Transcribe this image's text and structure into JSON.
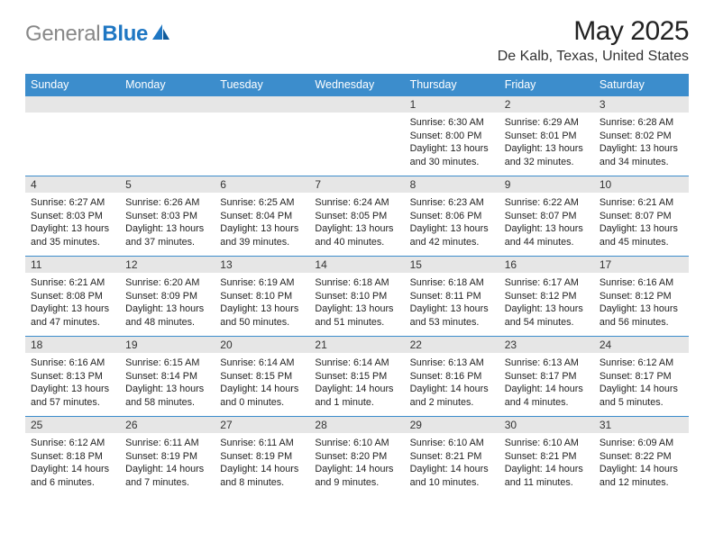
{
  "header": {
    "logo_general": "General",
    "logo_blue": "Blue",
    "month_title": "May 2025",
    "location": "De Kalb, Texas, United States"
  },
  "style": {
    "header_bg": "#3c8dcc",
    "border_color": "#3c8dcc",
    "num_bg": "#e6e6e6",
    "page_bg": "#ffffff",
    "day_font_size": 10.8,
    "header_font_size": 12.5
  },
  "day_names": [
    "Sunday",
    "Monday",
    "Tuesday",
    "Wednesday",
    "Thursday",
    "Friday",
    "Saturday"
  ],
  "weeks": [
    [
      {
        "num": "",
        "sunrise": "",
        "sunset": "",
        "daylight": ""
      },
      {
        "num": "",
        "sunrise": "",
        "sunset": "",
        "daylight": ""
      },
      {
        "num": "",
        "sunrise": "",
        "sunset": "",
        "daylight": ""
      },
      {
        "num": "",
        "sunrise": "",
        "sunset": "",
        "daylight": ""
      },
      {
        "num": "1",
        "sunrise": "Sunrise: 6:30 AM",
        "sunset": "Sunset: 8:00 PM",
        "daylight": "Daylight: 13 hours and 30 minutes."
      },
      {
        "num": "2",
        "sunrise": "Sunrise: 6:29 AM",
        "sunset": "Sunset: 8:01 PM",
        "daylight": "Daylight: 13 hours and 32 minutes."
      },
      {
        "num": "3",
        "sunrise": "Sunrise: 6:28 AM",
        "sunset": "Sunset: 8:02 PM",
        "daylight": "Daylight: 13 hours and 34 minutes."
      }
    ],
    [
      {
        "num": "4",
        "sunrise": "Sunrise: 6:27 AM",
        "sunset": "Sunset: 8:03 PM",
        "daylight": "Daylight: 13 hours and 35 minutes."
      },
      {
        "num": "5",
        "sunrise": "Sunrise: 6:26 AM",
        "sunset": "Sunset: 8:03 PM",
        "daylight": "Daylight: 13 hours and 37 minutes."
      },
      {
        "num": "6",
        "sunrise": "Sunrise: 6:25 AM",
        "sunset": "Sunset: 8:04 PM",
        "daylight": "Daylight: 13 hours and 39 minutes."
      },
      {
        "num": "7",
        "sunrise": "Sunrise: 6:24 AM",
        "sunset": "Sunset: 8:05 PM",
        "daylight": "Daylight: 13 hours and 40 minutes."
      },
      {
        "num": "8",
        "sunrise": "Sunrise: 6:23 AM",
        "sunset": "Sunset: 8:06 PM",
        "daylight": "Daylight: 13 hours and 42 minutes."
      },
      {
        "num": "9",
        "sunrise": "Sunrise: 6:22 AM",
        "sunset": "Sunset: 8:07 PM",
        "daylight": "Daylight: 13 hours and 44 minutes."
      },
      {
        "num": "10",
        "sunrise": "Sunrise: 6:21 AM",
        "sunset": "Sunset: 8:07 PM",
        "daylight": "Daylight: 13 hours and 45 minutes."
      }
    ],
    [
      {
        "num": "11",
        "sunrise": "Sunrise: 6:21 AM",
        "sunset": "Sunset: 8:08 PM",
        "daylight": "Daylight: 13 hours and 47 minutes."
      },
      {
        "num": "12",
        "sunrise": "Sunrise: 6:20 AM",
        "sunset": "Sunset: 8:09 PM",
        "daylight": "Daylight: 13 hours and 48 minutes."
      },
      {
        "num": "13",
        "sunrise": "Sunrise: 6:19 AM",
        "sunset": "Sunset: 8:10 PM",
        "daylight": "Daylight: 13 hours and 50 minutes."
      },
      {
        "num": "14",
        "sunrise": "Sunrise: 6:18 AM",
        "sunset": "Sunset: 8:10 PM",
        "daylight": "Daylight: 13 hours and 51 minutes."
      },
      {
        "num": "15",
        "sunrise": "Sunrise: 6:18 AM",
        "sunset": "Sunset: 8:11 PM",
        "daylight": "Daylight: 13 hours and 53 minutes."
      },
      {
        "num": "16",
        "sunrise": "Sunrise: 6:17 AM",
        "sunset": "Sunset: 8:12 PM",
        "daylight": "Daylight: 13 hours and 54 minutes."
      },
      {
        "num": "17",
        "sunrise": "Sunrise: 6:16 AM",
        "sunset": "Sunset: 8:12 PM",
        "daylight": "Daylight: 13 hours and 56 minutes."
      }
    ],
    [
      {
        "num": "18",
        "sunrise": "Sunrise: 6:16 AM",
        "sunset": "Sunset: 8:13 PM",
        "daylight": "Daylight: 13 hours and 57 minutes."
      },
      {
        "num": "19",
        "sunrise": "Sunrise: 6:15 AM",
        "sunset": "Sunset: 8:14 PM",
        "daylight": "Daylight: 13 hours and 58 minutes."
      },
      {
        "num": "20",
        "sunrise": "Sunrise: 6:14 AM",
        "sunset": "Sunset: 8:15 PM",
        "daylight": "Daylight: 14 hours and 0 minutes."
      },
      {
        "num": "21",
        "sunrise": "Sunrise: 6:14 AM",
        "sunset": "Sunset: 8:15 PM",
        "daylight": "Daylight: 14 hours and 1 minute."
      },
      {
        "num": "22",
        "sunrise": "Sunrise: 6:13 AM",
        "sunset": "Sunset: 8:16 PM",
        "daylight": "Daylight: 14 hours and 2 minutes."
      },
      {
        "num": "23",
        "sunrise": "Sunrise: 6:13 AM",
        "sunset": "Sunset: 8:17 PM",
        "daylight": "Daylight: 14 hours and 4 minutes."
      },
      {
        "num": "24",
        "sunrise": "Sunrise: 6:12 AM",
        "sunset": "Sunset: 8:17 PM",
        "daylight": "Daylight: 14 hours and 5 minutes."
      }
    ],
    [
      {
        "num": "25",
        "sunrise": "Sunrise: 6:12 AM",
        "sunset": "Sunset: 8:18 PM",
        "daylight": "Daylight: 14 hours and 6 minutes."
      },
      {
        "num": "26",
        "sunrise": "Sunrise: 6:11 AM",
        "sunset": "Sunset: 8:19 PM",
        "daylight": "Daylight: 14 hours and 7 minutes."
      },
      {
        "num": "27",
        "sunrise": "Sunrise: 6:11 AM",
        "sunset": "Sunset: 8:19 PM",
        "daylight": "Daylight: 14 hours and 8 minutes."
      },
      {
        "num": "28",
        "sunrise": "Sunrise: 6:10 AM",
        "sunset": "Sunset: 8:20 PM",
        "daylight": "Daylight: 14 hours and 9 minutes."
      },
      {
        "num": "29",
        "sunrise": "Sunrise: 6:10 AM",
        "sunset": "Sunset: 8:21 PM",
        "daylight": "Daylight: 14 hours and 10 minutes."
      },
      {
        "num": "30",
        "sunrise": "Sunrise: 6:10 AM",
        "sunset": "Sunset: 8:21 PM",
        "daylight": "Daylight: 14 hours and 11 minutes."
      },
      {
        "num": "31",
        "sunrise": "Sunrise: 6:09 AM",
        "sunset": "Sunset: 8:22 PM",
        "daylight": "Daylight: 14 hours and 12 minutes."
      }
    ]
  ]
}
